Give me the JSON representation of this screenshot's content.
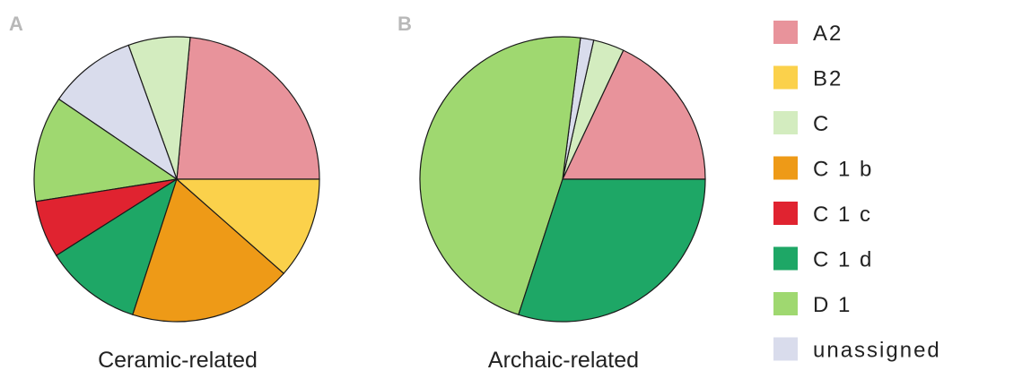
{
  "legend": {
    "items": [
      {
        "label": "A2",
        "color": "#e8939b"
      },
      {
        "label": "B2",
        "color": "#fbd14b"
      },
      {
        "label": "C",
        "color": "#d3ecbf"
      },
      {
        "label": "C 1 b",
        "color": "#ee9a17"
      },
      {
        "label": "C 1 c",
        "color": "#e02330"
      },
      {
        "label": "C 1 d",
        "color": "#1ea766"
      },
      {
        "label": "D 1",
        "color": "#9fd870"
      },
      {
        "label": "unassigned",
        "color": "#d9dcec"
      }
    ]
  },
  "chart_data": [
    {
      "type": "pie",
      "panel": "A",
      "title": "Ceramic-related",
      "categories": [
        "A2",
        "C",
        "unassigned",
        "D 1",
        "C 1 c",
        "C 1 d",
        "C 1 b",
        "B2"
      ],
      "values": [
        23.5,
        7,
        10,
        12,
        6.5,
        11,
        18.5,
        11.5
      ],
      "colors": [
        "#e8939b",
        "#d3ecbf",
        "#d9dcec",
        "#9fd870",
        "#e02330",
        "#1ea766",
        "#ee9a17",
        "#fbd14b"
      ]
    },
    {
      "type": "pie",
      "panel": "B",
      "title": "Archaic-related",
      "categories": [
        "A2",
        "C",
        "unassigned",
        "D 1",
        "C 1 d"
      ],
      "values": [
        18,
        3.5,
        1.5,
        47,
        30
      ],
      "colors": [
        "#e8939b",
        "#d3ecbf",
        "#d9dcec",
        "#9fd870",
        "#1ea766"
      ]
    }
  ]
}
